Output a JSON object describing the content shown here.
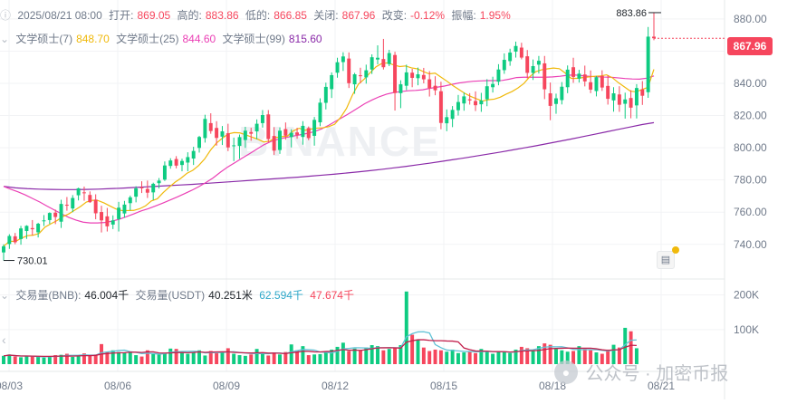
{
  "header": {
    "date": "2025/08/21 08:00",
    "open_label": "打开:",
    "open": "869.05",
    "high_label": "高的:",
    "high": "883.86",
    "low_label": "低的:",
    "low": "866.85",
    "close_label": "关闭:",
    "close": "867.96",
    "change_label": "改变:",
    "change": "-0.12%",
    "amplitude_label": "振幅:",
    "amplitude": "1.95%"
  },
  "ma_legend": {
    "ma7_label": "文学硕士(7)",
    "ma7": "848.70",
    "ma25_label": "文学硕士(25)",
    "ma25": "844.60",
    "ma99_label": "文学硕士(99)",
    "ma99": "815.60"
  },
  "volume_legend": {
    "bnb_label": "交易量(BNB):",
    "bnb": "46.004千",
    "usdt_label": "交易量(USDT)",
    "usdt": "40.251米",
    "ma1": "62.594千",
    "ma2": "47.674千"
  },
  "price_tag": "867.96",
  "high_marker": "883.86",
  "low_marker": "730.01",
  "watermark": "BINANCE",
  "footer_watermark": "公众号 · 加密币报",
  "colors": {
    "up": "#0ecb81",
    "down": "#f6465d",
    "ma7": "#f0b90b",
    "ma25": "#eb40b5",
    "ma99": "#8a2aa8",
    "vol_ma1": "#60c2d6",
    "vol_ma2": "#c21f4b"
  },
  "chart_data": {
    "type": "candlestick",
    "x_ticks": [
      "08/03",
      "08/06",
      "08/09",
      "08/12",
      "08/15",
      "08/18",
      "08/21"
    ],
    "y_ticks": [
      "880.00",
      "860.00",
      "840.00",
      "820.00",
      "800.00",
      "780.00",
      "760.00",
      "740.00"
    ],
    "ylim": [
      723,
      885
    ],
    "volume_ticks": [
      "200K",
      "100K"
    ],
    "volume_ylim": [
      0,
      220000
    ],
    "candles": [
      {
        "o": 735.0,
        "h": 740.0,
        "l": 730.0,
        "c": 738.8
      },
      {
        "o": 740.2,
        "h": 746.3,
        "l": 737.2,
        "c": 745.2
      },
      {
        "o": 745.0,
        "h": 747.1,
        "l": 740.1,
        "c": 741.3
      },
      {
        "o": 743.3,
        "h": 751.5,
        "l": 739.8,
        "c": 749.9
      },
      {
        "o": 748.3,
        "h": 751.9,
        "l": 743.4,
        "c": 751.5
      },
      {
        "o": 750.1,
        "h": 755.1,
        "l": 745.6,
        "c": 749.4
      },
      {
        "o": 747.5,
        "h": 753.4,
        "l": 744.3,
        "c": 752.8
      },
      {
        "o": 754.5,
        "h": 758.2,
        "l": 751.4,
        "c": 754.9
      },
      {
        "o": 755.1,
        "h": 759.9,
        "l": 752.7,
        "c": 759.5
      },
      {
        "o": 759.7,
        "h": 761.6,
        "l": 752.6,
        "c": 757.0
      },
      {
        "o": 754.1,
        "h": 767.7,
        "l": 750.2,
        "c": 765.1
      },
      {
        "o": 764.6,
        "h": 769.4,
        "l": 760.9,
        "c": 764.4
      },
      {
        "o": 762.3,
        "h": 770.6,
        "l": 760.0,
        "c": 768.8
      },
      {
        "o": 770.5,
        "h": 775.2,
        "l": 767.3,
        "c": 774.8
      },
      {
        "o": 772.3,
        "h": 775.9,
        "l": 767.1,
        "c": 772.2
      },
      {
        "o": 770.7,
        "h": 772.9,
        "l": 765.8,
        "c": 766.2
      },
      {
        "o": 767.8,
        "h": 771.1,
        "l": 755.6,
        "c": 759.3
      },
      {
        "o": 760.1,
        "h": 764.0,
        "l": 747.4,
        "c": 754.9
      },
      {
        "o": 757.4,
        "h": 762.6,
        "l": 748.0,
        "c": 751.2
      },
      {
        "o": 752.3,
        "h": 758.0,
        "l": 749.5,
        "c": 754.9
      },
      {
        "o": 755.7,
        "h": 766.4,
        "l": 748.0,
        "c": 762.8
      },
      {
        "o": 759.2,
        "h": 767.0,
        "l": 756.6,
        "c": 764.7
      },
      {
        "o": 765.6,
        "h": 770.3,
        "l": 761.1,
        "c": 769.2
      },
      {
        "o": 769.6,
        "h": 776.1,
        "l": 766.1,
        "c": 774.8
      },
      {
        "o": 775.4,
        "h": 779.2,
        "l": 771.9,
        "c": 775.3
      },
      {
        "o": 774.4,
        "h": 779.6,
        "l": 768.8,
        "c": 772.1
      },
      {
        "o": 772.3,
        "h": 778.3,
        "l": 767.5,
        "c": 777.6
      },
      {
        "o": 778.0,
        "h": 781.2,
        "l": 774.7,
        "c": 779.6
      },
      {
        "o": 780.2,
        "h": 791.5,
        "l": 779.4,
        "c": 789.0
      },
      {
        "o": 788.7,
        "h": 793.5,
        "l": 787.0,
        "c": 792.1
      },
      {
        "o": 793.0,
        "h": 794.8,
        "l": 787.2,
        "c": 788.9
      },
      {
        "o": 789.3,
        "h": 793.2,
        "l": 785.4,
        "c": 791.8
      },
      {
        "o": 790.8,
        "h": 797.2,
        "l": 785.4,
        "c": 794.2
      },
      {
        "o": 793.3,
        "h": 800.6,
        "l": 789.3,
        "c": 798.0
      },
      {
        "o": 799.9,
        "h": 807.4,
        "l": 797.0,
        "c": 806.7
      },
      {
        "o": 806.0,
        "h": 820.5,
        "l": 803.2,
        "c": 817.9
      },
      {
        "o": 815.3,
        "h": 821.4,
        "l": 808.7,
        "c": 810.4
      },
      {
        "o": 812.3,
        "h": 816.5,
        "l": 801.3,
        "c": 806.1
      },
      {
        "o": 806.9,
        "h": 813.5,
        "l": 801.7,
        "c": 810.2
      },
      {
        "o": 809.0,
        "h": 814.9,
        "l": 797.9,
        "c": 800.2
      },
      {
        "o": 801.1,
        "h": 806.3,
        "l": 791.7,
        "c": 801.5
      },
      {
        "o": 801.1,
        "h": 808.2,
        "l": 793.1,
        "c": 806.6
      },
      {
        "o": 804.8,
        "h": 813.0,
        "l": 799.9,
        "c": 810.6
      },
      {
        "o": 809.8,
        "h": 812.4,
        "l": 804.3,
        "c": 808.7
      },
      {
        "o": 810.2,
        "h": 817.6,
        "l": 805.3,
        "c": 814.9
      },
      {
        "o": 815.3,
        "h": 823.4,
        "l": 812.5,
        "c": 820.3
      },
      {
        "o": 820.7,
        "h": 823.4,
        "l": 803.5,
        "c": 805.4
      },
      {
        "o": 807.3,
        "h": 812.8,
        "l": 795.6,
        "c": 798.2
      },
      {
        "o": 798.6,
        "h": 812.7,
        "l": 796.2,
        "c": 810.6
      },
      {
        "o": 811.6,
        "h": 815.7,
        "l": 805.0,
        "c": 807.5
      },
      {
        "o": 806.6,
        "h": 811.5,
        "l": 800.2,
        "c": 809.3
      },
      {
        "o": 809.5,
        "h": 812.4,
        "l": 805.6,
        "c": 808.0
      },
      {
        "o": 806.7,
        "h": 816.5,
        "l": 801.9,
        "c": 813.6
      },
      {
        "o": 812.2,
        "h": 813.2,
        "l": 804.7,
        "c": 806.0
      },
      {
        "o": 807.4,
        "h": 819.1,
        "l": 801.3,
        "c": 817.3
      },
      {
        "o": 815.8,
        "h": 830.7,
        "l": 813.4,
        "c": 828.0
      },
      {
        "o": 827.9,
        "h": 840.4,
        "l": 823.8,
        "c": 837.8
      },
      {
        "o": 836.4,
        "h": 846.8,
        "l": 830.9,
        "c": 845.1
      },
      {
        "o": 846.6,
        "h": 855.9,
        "l": 843.5,
        "c": 853.1
      },
      {
        "o": 853.2,
        "h": 859.3,
        "l": 847.7,
        "c": 856.7
      },
      {
        "o": 855.4,
        "h": 859.2,
        "l": 837.1,
        "c": 840.1
      },
      {
        "o": 839.4,
        "h": 846.5,
        "l": 833.5,
        "c": 845.6
      },
      {
        "o": 845.0,
        "h": 849.7,
        "l": 840.0,
        "c": 844.6
      },
      {
        "o": 843.7,
        "h": 851.6,
        "l": 839.8,
        "c": 848.1
      },
      {
        "o": 848.6,
        "h": 858.0,
        "l": 845.8,
        "c": 856.2
      },
      {
        "o": 854.8,
        "h": 863.6,
        "l": 851.8,
        "c": 855.9
      },
      {
        "o": 855.1,
        "h": 867.6,
        "l": 848.6,
        "c": 850.0
      },
      {
        "o": 852.0,
        "h": 860.8,
        "l": 850.7,
        "c": 858.8
      },
      {
        "o": 857.6,
        "h": 859.6,
        "l": 823.1,
        "c": 834.0
      },
      {
        "o": 833.9,
        "h": 841.9,
        "l": 824.6,
        "c": 839.4
      },
      {
        "o": 838.5,
        "h": 851.6,
        "l": 835.8,
        "c": 846.8
      },
      {
        "o": 846.6,
        "h": 849.0,
        "l": 837.6,
        "c": 843.4
      },
      {
        "o": 843.2,
        "h": 849.8,
        "l": 838.8,
        "c": 845.6
      },
      {
        "o": 845.2,
        "h": 849.6,
        "l": 840.0,
        "c": 842.5
      },
      {
        "o": 842.5,
        "h": 847.6,
        "l": 831.8,
        "c": 837.0
      },
      {
        "o": 838.5,
        "h": 844.4,
        "l": 832.6,
        "c": 835.7
      },
      {
        "o": 835.1,
        "h": 841.0,
        "l": 811.5,
        "c": 815.4
      },
      {
        "o": 815.2,
        "h": 823.8,
        "l": 810.3,
        "c": 819.0
      },
      {
        "o": 817.9,
        "h": 825.9,
        "l": 812.8,
        "c": 823.5
      },
      {
        "o": 823.3,
        "h": 832.8,
        "l": 820.0,
        "c": 828.4
      },
      {
        "o": 827.5,
        "h": 834.3,
        "l": 823.0,
        "c": 831.9
      },
      {
        "o": 830.1,
        "h": 833.9,
        "l": 826.8,
        "c": 829.4
      },
      {
        "o": 829.0,
        "h": 835.0,
        "l": 822.8,
        "c": 826.4
      },
      {
        "o": 827.0,
        "h": 834.1,
        "l": 822.3,
        "c": 829.3
      },
      {
        "o": 830.1,
        "h": 842.6,
        "l": 825.8,
        "c": 838.2
      },
      {
        "o": 837.6,
        "h": 844.1,
        "l": 834.3,
        "c": 839.6
      },
      {
        "o": 841.0,
        "h": 851.9,
        "l": 838.8,
        "c": 848.6
      },
      {
        "o": 848.2,
        "h": 858.6,
        "l": 845.9,
        "c": 854.6
      },
      {
        "o": 853.8,
        "h": 861.5,
        "l": 850.9,
        "c": 859.1
      },
      {
        "o": 859.7,
        "h": 865.9,
        "l": 856.0,
        "c": 863.2
      },
      {
        "o": 862.2,
        "h": 865.2,
        "l": 854.9,
        "c": 856.0
      },
      {
        "o": 856.8,
        "h": 860.7,
        "l": 843.1,
        "c": 846.5
      },
      {
        "o": 846.5,
        "h": 854.8,
        "l": 842.1,
        "c": 850.7
      },
      {
        "o": 851.6,
        "h": 857.0,
        "l": 846.1,
        "c": 854.0
      },
      {
        "o": 852.4,
        "h": 857.0,
        "l": 830.2,
        "c": 836.3
      },
      {
        "o": 833.8,
        "h": 840.5,
        "l": 817.1,
        "c": 826.0
      },
      {
        "o": 827.2,
        "h": 833.6,
        "l": 821.1,
        "c": 830.7
      },
      {
        "o": 829.6,
        "h": 840.8,
        "l": 826.9,
        "c": 837.9
      },
      {
        "o": 837.6,
        "h": 851.1,
        "l": 833.9,
        "c": 848.5
      },
      {
        "o": 850.0,
        "h": 855.9,
        "l": 840.3,
        "c": 844.0
      },
      {
        "o": 842.9,
        "h": 848.4,
        "l": 840.5,
        "c": 846.0
      },
      {
        "o": 845.5,
        "h": 851.0,
        "l": 838.1,
        "c": 841.2
      },
      {
        "o": 840.7,
        "h": 848.0,
        "l": 833.9,
        "c": 836.1
      },
      {
        "o": 835.2,
        "h": 844.6,
        "l": 831.9,
        "c": 843.8
      },
      {
        "o": 844.6,
        "h": 848.1,
        "l": 835.3,
        "c": 837.4
      },
      {
        "o": 838.4,
        "h": 845.0,
        "l": 826.8,
        "c": 830.4
      },
      {
        "o": 829.4,
        "h": 837.6,
        "l": 822.4,
        "c": 833.8
      },
      {
        "o": 833.1,
        "h": 838.2,
        "l": 822.3,
        "c": 826.7
      },
      {
        "o": 827.3,
        "h": 834.2,
        "l": 818.1,
        "c": 830.0
      },
      {
        "o": 830.9,
        "h": 835.7,
        "l": 818.3,
        "c": 824.9
      },
      {
        "o": 826.3,
        "h": 839.5,
        "l": 818.2,
        "c": 837.1
      },
      {
        "o": 836.2,
        "h": 841.4,
        "l": 826.6,
        "c": 832.3
      },
      {
        "o": 834.5,
        "h": 875.0,
        "l": 831.0,
        "c": 869.0
      },
      {
        "o": 869.0,
        "h": 883.9,
        "l": 866.8,
        "c": 868.0
      }
    ],
    "ma7": [
      738.8,
      742.0,
      741.8,
      743.8,
      745.4,
      745.7,
      746.8,
      750.7,
      752.8,
      754.7,
      757.2,
      758.9,
      761.2,
      763.5,
      766.3,
      767.4,
      767.2,
      765.7,
      763.8,
      762.0,
      761.0,
      761.0,
      761.1,
      762.1,
      763.9,
      767.0,
      768.3,
      772.2,
      775.5,
      778.6,
      781.1,
      784.1,
      786.0,
      789.0,
      793.0,
      798.5,
      802.9,
      805.9,
      808.6,
      809.4,
      809.2,
      808.0,
      806.6,
      805.3,
      803.6,
      804.1,
      806.3,
      806.9,
      807.2,
      810.5,
      812.1,
      810.9,
      811.6,
      812.2,
      812.4,
      813.1,
      814.6,
      818.8,
      824.4,
      832.7,
      839.4,
      842.6,
      846.6,
      850.3,
      852.4,
      852.7,
      851.4,
      850.4,
      850.8,
      849.6,
      849.0,
      847.3,
      845.9,
      846.3,
      843.8,
      841.3,
      838.6,
      836.2,
      833.8,
      831.9,
      830.4,
      829.0,
      829.8,
      830.2,
      831.4,
      833.3,
      834.9,
      837.1,
      839.9,
      844.1,
      847.2,
      848.4,
      849.0,
      849.5,
      849.1,
      846.4,
      843.1,
      843.1,
      843.6,
      844.0,
      844.4,
      844.6,
      845.3,
      843.4,
      840.4,
      837.8,
      835.2,
      834.7,
      836.2,
      837.5,
      848.7
    ],
    "ma25": [
      776.0,
      774.2,
      772.6,
      770.7,
      768.5,
      766.3,
      763.8,
      761.4,
      759.0,
      756.8,
      755.1,
      753.8,
      753.3,
      753.3,
      753.6,
      754.4,
      755.6,
      757.2,
      758.9,
      760.7,
      762.1,
      763.8,
      765.6,
      767.5,
      769.4,
      771.4,
      773.5,
      775.8,
      778.4,
      781.3,
      784.8,
      788.0,
      790.7,
      793.5,
      796.2,
      799.0,
      801.8,
      803.9,
      805.3,
      806.3,
      807.2,
      808.0,
      808.9,
      810.0,
      811.7,
      814.0,
      816.6,
      819.1,
      821.8,
      824.6,
      827.4,
      829.7,
      831.7,
      833.3,
      834.3,
      834.9,
      835.4,
      835.6,
      836.0,
      836.9,
      837.6,
      838.3,
      839.3,
      840.2,
      840.8,
      841.3,
      841.5,
      841.7,
      841.7,
      841.8,
      842.6,
      843.6,
      843.8,
      843.8,
      843.8,
      843.8,
      844.0,
      844.4,
      845.0,
      845.2,
      844.8,
      844.4,
      844.1,
      843.9,
      843.8,
      843.4,
      843.0,
      842.7,
      842.6,
      843.2,
      844.6
    ],
    "ma99": [
      776.0,
      775.1,
      774.6,
      774.3,
      774.1,
      774.0,
      774.0,
      774.1,
      774.3,
      774.6,
      774.9,
      775.3,
      775.7,
      776.1,
      776.5,
      776.9,
      777.3,
      777.8,
      778.3,
      778.8,
      779.3,
      779.8,
      780.3,
      780.8,
      781.3,
      781.8,
      782.4,
      783.0,
      783.6,
      784.3,
      785.0,
      785.8,
      786.6,
      787.5,
      788.4,
      789.4,
      790.4,
      791.5,
      792.6,
      793.7,
      794.9,
      796.1,
      797.3,
      798.6,
      799.9,
      801.2,
      802.6,
      804.0,
      805.4,
      806.9,
      808.4,
      809.9,
      811.4,
      812.9,
      814.4,
      815.6
    ],
    "volume": [
      24000,
      28000,
      22000,
      20000,
      24000,
      22000,
      21000,
      19000,
      23000,
      26000,
      27000,
      30000,
      21000,
      25000,
      31000,
      24000,
      28000,
      58000,
      36000,
      40000,
      35000,
      33000,
      36000,
      26000,
      22000,
      40000,
      29000,
      28000,
      32000,
      45000,
      44000,
      34000,
      30000,
      33000,
      40000,
      25000,
      38000,
      32000,
      34000,
      46000,
      30000,
      26000,
      24000,
      28000,
      44000,
      30000,
      25000,
      34000,
      28000,
      35000,
      57000,
      40000,
      52000,
      26000,
      28000,
      29000,
      36000,
      42000,
      50000,
      62000,
      38000,
      45000,
      41000,
      48000,
      55000,
      52000,
      40000,
      44000,
      46000,
      55000,
      210000,
      85000,
      70000,
      48000,
      38000,
      42000,
      40000,
      36000,
      42000,
      32000,
      34000,
      38000,
      32000,
      44000,
      36000,
      30000,
      38000,
      34000,
      32000,
      42000,
      50000,
      46000,
      38000,
      52000,
      60000,
      56000,
      44000,
      40000,
      36000,
      38000,
      52000,
      44000,
      40000,
      34000,
      30000,
      42000,
      56000,
      48000,
      105000,
      95000,
      46004
    ]
  }
}
